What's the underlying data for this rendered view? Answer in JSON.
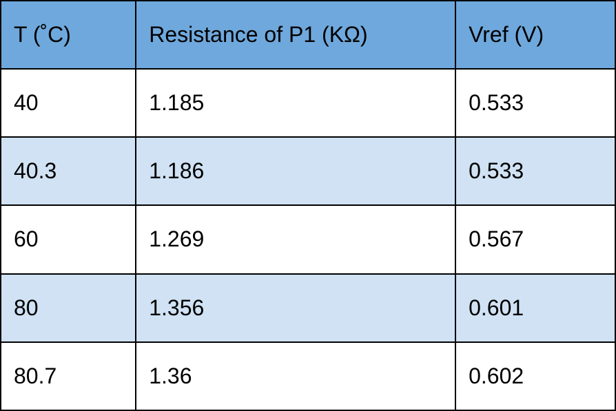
{
  "table": {
    "type": "table",
    "header_background": "#6fa8dc",
    "row_odd_background": "#ffffff",
    "row_even_background": "#d0e2f3",
    "border_color": "#000000",
    "border_width": 2,
    "font_size": 32,
    "font_family": "Arial",
    "text_color": "#000000",
    "column_widths_pct": [
      22,
      52,
      26
    ],
    "columns": [
      {
        "label": "T (˚C)",
        "align": "left"
      },
      {
        "label": "Resistance of P1 (KΩ)",
        "align": "left"
      },
      {
        "label": "Vref (V)",
        "align": "left"
      }
    ],
    "rows": [
      [
        "40",
        "1.185",
        "0.533"
      ],
      [
        "40.3",
        "1.186",
        "0.533"
      ],
      [
        "60",
        "1.269",
        "0.567"
      ],
      [
        "80",
        "1.356",
        "0.601"
      ],
      [
        "80.7",
        "1.36",
        "0.602"
      ]
    ]
  }
}
